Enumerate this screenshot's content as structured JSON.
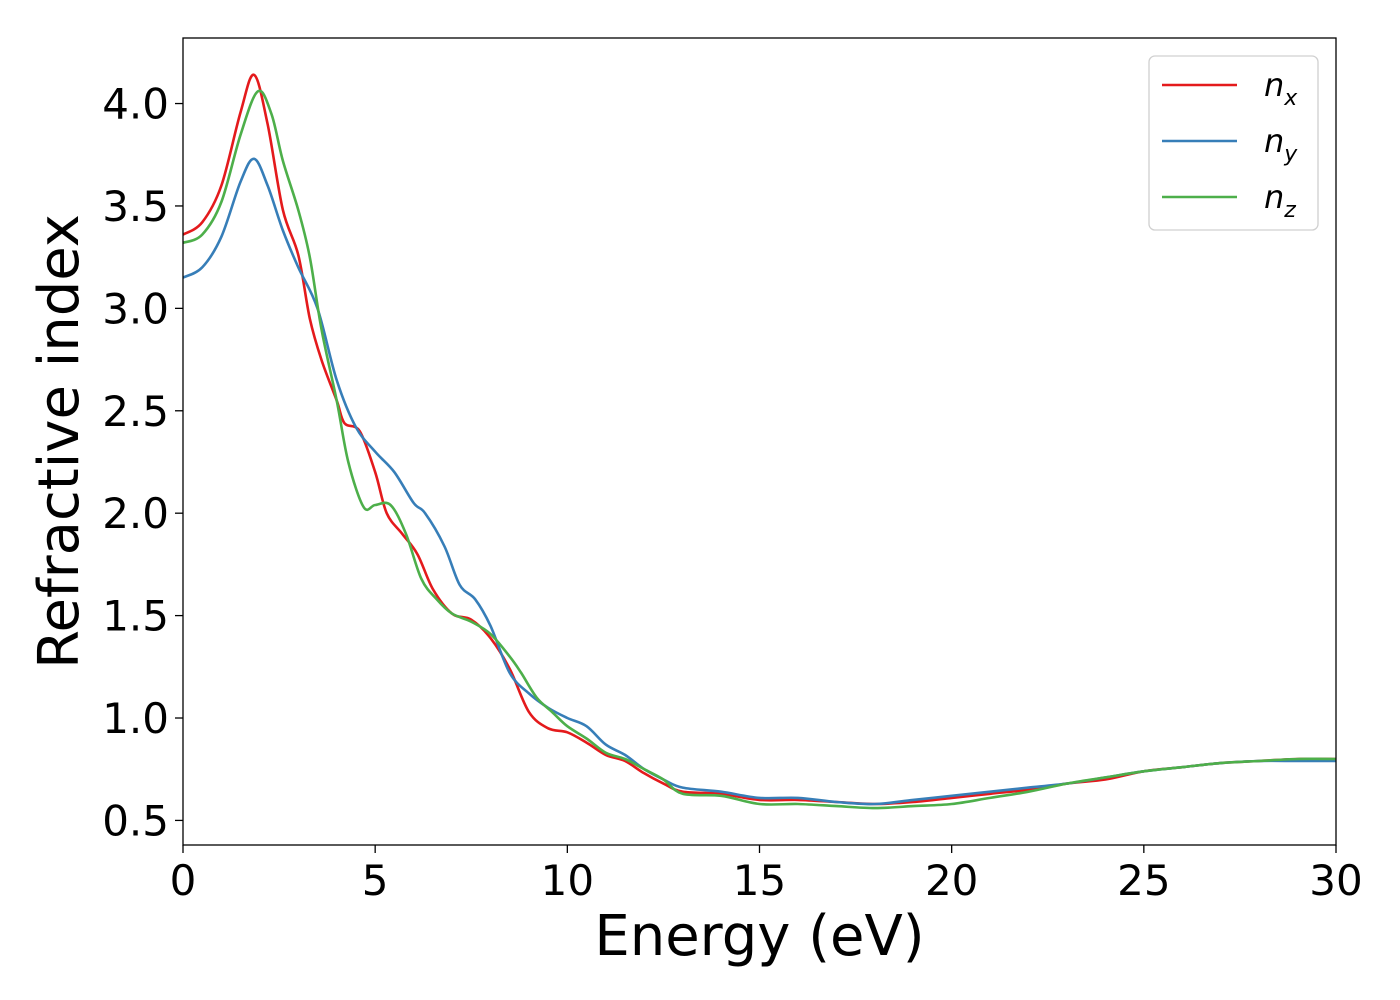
{
  "chart_data": {
    "type": "line",
    "title": "",
    "xlabel": "Energy (eV)",
    "ylabel": "Refractive index",
    "xlim": [
      0,
      30
    ],
    "ylim": [
      0.38,
      4.32
    ],
    "xticks": [
      0,
      5,
      10,
      15,
      20,
      25,
      30
    ],
    "xtick_labels": [
      "0",
      "5",
      "10",
      "15",
      "20",
      "25",
      "30"
    ],
    "yticks": [
      0.5,
      1.0,
      1.5,
      2.0,
      2.5,
      3.0,
      3.5,
      4.0
    ],
    "ytick_labels": [
      "0.5",
      "1.0",
      "1.5",
      "2.0",
      "2.5",
      "3.0",
      "3.5",
      "4.0"
    ],
    "grid": false,
    "legend_position": "top-right",
    "series": [
      {
        "name": "n_x",
        "label_base": "n",
        "label_sub": "x",
        "color": "#e41a1c",
        "x": [
          0,
          0.5,
          1.0,
          1.5,
          1.85,
          2.2,
          2.6,
          3.0,
          3.3,
          3.6,
          4.0,
          4.2,
          4.6,
          5.0,
          5.3,
          5.7,
          6.1,
          6.5,
          7.0,
          7.5,
          8.0,
          8.5,
          9.0,
          9.5,
          10.0,
          10.5,
          11.0,
          11.5,
          12.0,
          12.5,
          13.0,
          14.0,
          15.0,
          16.0,
          17.0,
          18.0,
          19.0,
          20.0,
          21.0,
          22.0,
          23.0,
          24.0,
          25.0,
          26.0,
          27.0,
          28.0,
          29.0,
          30.0
        ],
        "y": [
          3.36,
          3.42,
          3.6,
          3.96,
          4.14,
          3.9,
          3.48,
          3.26,
          2.95,
          2.75,
          2.55,
          2.44,
          2.4,
          2.2,
          2.0,
          1.9,
          1.8,
          1.63,
          1.51,
          1.48,
          1.39,
          1.24,
          1.03,
          0.95,
          0.93,
          0.88,
          0.82,
          0.79,
          0.73,
          0.68,
          0.64,
          0.63,
          0.6,
          0.6,
          0.59,
          0.58,
          0.59,
          0.61,
          0.63,
          0.65,
          0.68,
          0.7,
          0.74,
          0.76,
          0.78,
          0.79,
          0.8,
          0.8
        ]
      },
      {
        "name": "n_y",
        "label_base": "n",
        "label_sub": "y",
        "color": "#377eb8",
        "x": [
          0,
          0.5,
          1.0,
          1.5,
          1.85,
          2.2,
          2.6,
          3.0,
          3.5,
          4.0,
          4.5,
          5.0,
          5.5,
          6.0,
          6.3,
          6.8,
          7.2,
          7.6,
          8.0,
          8.5,
          9.0,
          9.5,
          10.0,
          10.5,
          11.0,
          11.5,
          12.0,
          12.5,
          13.0,
          14.0,
          15.0,
          16.0,
          17.0,
          18.0,
          19.0,
          20.0,
          21.0,
          22.0,
          23.0,
          24.0,
          25.0,
          26.0,
          27.0,
          28.0,
          29.0,
          30.0
        ],
        "y": [
          3.15,
          3.2,
          3.35,
          3.62,
          3.73,
          3.6,
          3.38,
          3.2,
          3.0,
          2.65,
          2.42,
          2.3,
          2.2,
          2.05,
          2.0,
          1.84,
          1.65,
          1.58,
          1.45,
          1.22,
          1.12,
          1.05,
          1.0,
          0.96,
          0.87,
          0.82,
          0.75,
          0.7,
          0.66,
          0.64,
          0.61,
          0.61,
          0.59,
          0.58,
          0.6,
          0.62,
          0.64,
          0.66,
          0.68,
          0.71,
          0.74,
          0.76,
          0.78,
          0.79,
          0.79,
          0.79
        ]
      },
      {
        "name": "n_z",
        "label_base": "n",
        "label_sub": "z",
        "color": "#4daf4a",
        "x": [
          0,
          0.5,
          1.0,
          1.5,
          1.95,
          2.3,
          2.6,
          3.0,
          3.3,
          3.6,
          4.0,
          4.3,
          4.7,
          5.0,
          5.4,
          5.8,
          6.2,
          6.6,
          7.0,
          7.5,
          8.0,
          8.5,
          8.8,
          9.2,
          9.6,
          10.0,
          10.5,
          11.0,
          11.5,
          12.0,
          12.5,
          13.0,
          14.0,
          15.0,
          16.0,
          17.0,
          18.0,
          19.0,
          20.0,
          21.0,
          22.0,
          23.0,
          24.0,
          25.0,
          26.0,
          27.0,
          28.0,
          29.0,
          30.0
        ],
        "y": [
          3.32,
          3.36,
          3.52,
          3.85,
          4.06,
          3.95,
          3.72,
          3.48,
          3.25,
          2.9,
          2.55,
          2.25,
          2.03,
          2.04,
          2.04,
          1.9,
          1.68,
          1.58,
          1.51,
          1.47,
          1.41,
          1.3,
          1.22,
          1.1,
          1.03,
          0.96,
          0.9,
          0.83,
          0.8,
          0.75,
          0.7,
          0.63,
          0.62,
          0.58,
          0.58,
          0.57,
          0.56,
          0.57,
          0.58,
          0.61,
          0.64,
          0.68,
          0.71,
          0.74,
          0.76,
          0.78,
          0.79,
          0.8,
          0.8
        ]
      }
    ]
  }
}
